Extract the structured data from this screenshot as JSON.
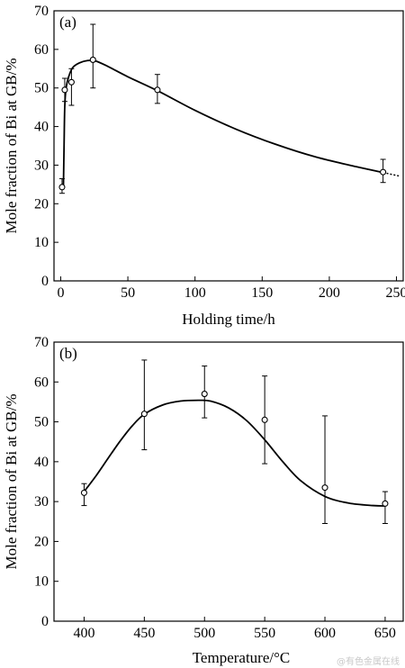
{
  "watermark": "@有色金属在线",
  "chart_data": [
    {
      "type": "scatter",
      "panel_label": "(a)",
      "xlabel": "Holding time/h",
      "ylabel": "Mole fraction of Bi at GB/%",
      "xlim": [
        -5,
        255
      ],
      "ylim": [
        0,
        70
      ],
      "xticks": [
        0,
        50,
        100,
        150,
        200,
        250
      ],
      "yticks": [
        0,
        10,
        20,
        30,
        40,
        50,
        60,
        70
      ],
      "grid": false,
      "points": [
        {
          "x": 1,
          "y": 24.3,
          "err_low": 22.7,
          "err_high": 26.5
        },
        {
          "x": 3,
          "y": 49.5,
          "err_low": 46.5,
          "err_high": 52.5
        },
        {
          "x": 8,
          "y": 51.5,
          "err_low": 45.5,
          "err_high": 55.0
        },
        {
          "x": 24,
          "y": 57.3,
          "err_low": 50.0,
          "err_high": 66.5
        },
        {
          "x": 72,
          "y": 49.5,
          "err_low": 46.0,
          "err_high": 53.5
        },
        {
          "x": 240,
          "y": 28.2,
          "err_low": 25.5,
          "err_high": 31.5
        }
      ],
      "fit_curve": [
        [
          2,
          24
        ],
        [
          2.5,
          35
        ],
        [
          3,
          45
        ],
        [
          4,
          50
        ],
        [
          6,
          53
        ],
        [
          9,
          55.3
        ],
        [
          14,
          56.5
        ],
        [
          20,
          57.1
        ],
        [
          26,
          57
        ],
        [
          35,
          55.6
        ],
        [
          50,
          52.9
        ],
        [
          72,
          49.3
        ],
        [
          100,
          44.2
        ],
        [
          130,
          39.4
        ],
        [
          160,
          35.4
        ],
        [
          190,
          32.1
        ],
        [
          220,
          29.6
        ],
        [
          240,
          28.1
        ]
      ],
      "fit_extension": [
        [
          240,
          28.1
        ],
        [
          253,
          27.1
        ]
      ]
    },
    {
      "type": "scatter",
      "panel_label": "(b)",
      "xlabel": "Temperature/°C",
      "ylabel": "Mole fraction of Bi at GB/%",
      "xlim": [
        375,
        665
      ],
      "ylim": [
        0,
        70
      ],
      "xticks": [
        400,
        450,
        500,
        550,
        600,
        650
      ],
      "yticks": [
        0,
        10,
        20,
        30,
        40,
        50,
        60,
        70
      ],
      "grid": false,
      "points": [
        {
          "x": 400,
          "y": 32.2,
          "err_low": 29.0,
          "err_high": 34.5
        },
        {
          "x": 450,
          "y": 52.0,
          "err_low": 43.0,
          "err_high": 65.5
        },
        {
          "x": 500,
          "y": 57.0,
          "err_low": 51.0,
          "err_high": 64.0
        },
        {
          "x": 550,
          "y": 50.5,
          "err_low": 39.5,
          "err_high": 61.5
        },
        {
          "x": 600,
          "y": 33.5,
          "err_low": 24.5,
          "err_high": 51.5
        },
        {
          "x": 650,
          "y": 29.5,
          "err_low": 24.5,
          "err_high": 32.5
        }
      ],
      "fit_curve": [
        [
          400,
          32.5
        ],
        [
          410,
          36.5
        ],
        [
          420,
          40.9
        ],
        [
          430,
          45.2
        ],
        [
          440,
          49.0
        ],
        [
          450,
          51.9
        ],
        [
          465,
          54.2
        ],
        [
          480,
          55.2
        ],
        [
          495,
          55.4
        ],
        [
          505,
          55.2
        ],
        [
          520,
          53.5
        ],
        [
          535,
          50.3
        ],
        [
          550,
          45.5
        ],
        [
          565,
          40.0
        ],
        [
          580,
          35.2
        ],
        [
          600,
          31.3
        ],
        [
          620,
          29.6
        ],
        [
          640,
          29.0
        ],
        [
          650,
          28.9
        ]
      ]
    }
  ]
}
